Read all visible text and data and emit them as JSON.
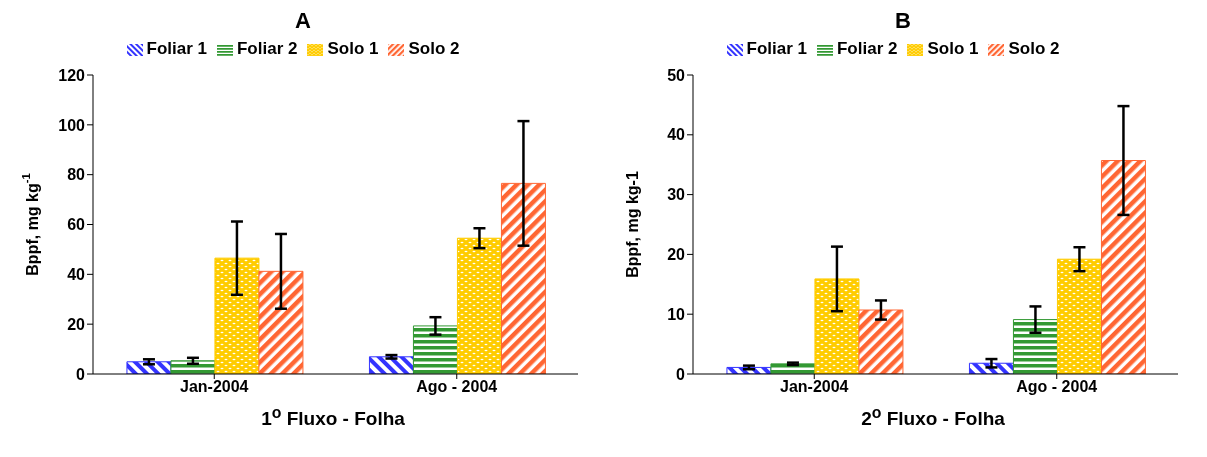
{
  "chart_data": [
    {
      "type": "bar",
      "title": "A",
      "xlabel": "1$^{o}$ Fluxo - Folha",
      "ylabel": "Bppf,  mg kg$^{-1}$",
      "categories": [
        "Jan-2004",
        "Ago - 2004"
      ],
      "ylim": [
        0,
        120
      ],
      "yticks": [
        0,
        20,
        40,
        60,
        80,
        100,
        120
      ],
      "grid": false,
      "legend": "top",
      "series": [
        {
          "name": "Foliar 1",
          "color": "#3333ff",
          "values": [
            4.9,
            6.9
          ],
          "errors": [
            1.0,
            0.7
          ]
        },
        {
          "name": "Foliar 2",
          "color": "#339933",
          "values": [
            5.3,
            19.3
          ],
          "errors": [
            1.2,
            3.5
          ]
        },
        {
          "name": "Solo 1",
          "color": "#ffcc00",
          "values": [
            46.5,
            54.5
          ],
          "errors": [
            14.7,
            4.0
          ]
        },
        {
          "name": "Solo 2",
          "color": "#ff6633",
          "values": [
            41.2,
            76.5
          ],
          "errors": [
            15.0,
            25.0
          ]
        }
      ]
    },
    {
      "type": "bar",
      "title": "B",
      "xlabel": "2$^{o}$ Fluxo - Folha",
      "ylabel": "Bppf,  mg kg-1",
      "categories": [
        "Jan-2004",
        "Ago - 2004"
      ],
      "ylim": [
        0,
        50
      ],
      "yticks": [
        0,
        10,
        20,
        30,
        40,
        50
      ],
      "grid": false,
      "legend": "top",
      "series": [
        {
          "name": "Foliar 1",
          "color": "#3333ff",
          "values": [
            1.1,
            1.8
          ],
          "errors": [
            0.3,
            0.7
          ]
        },
        {
          "name": "Foliar 2",
          "color": "#339933",
          "values": [
            1.7,
            9.1
          ],
          "errors": [
            0.2,
            2.2
          ]
        },
        {
          "name": "Solo 1",
          "color": "#ffcc00",
          "values": [
            15.9,
            19.2
          ],
          "errors": [
            5.4,
            2.0
          ]
        },
        {
          "name": "Solo 2",
          "color": "#ff6633",
          "values": [
            10.7,
            35.7
          ],
          "errors": [
            1.6,
            9.1
          ]
        }
      ]
    }
  ]
}
